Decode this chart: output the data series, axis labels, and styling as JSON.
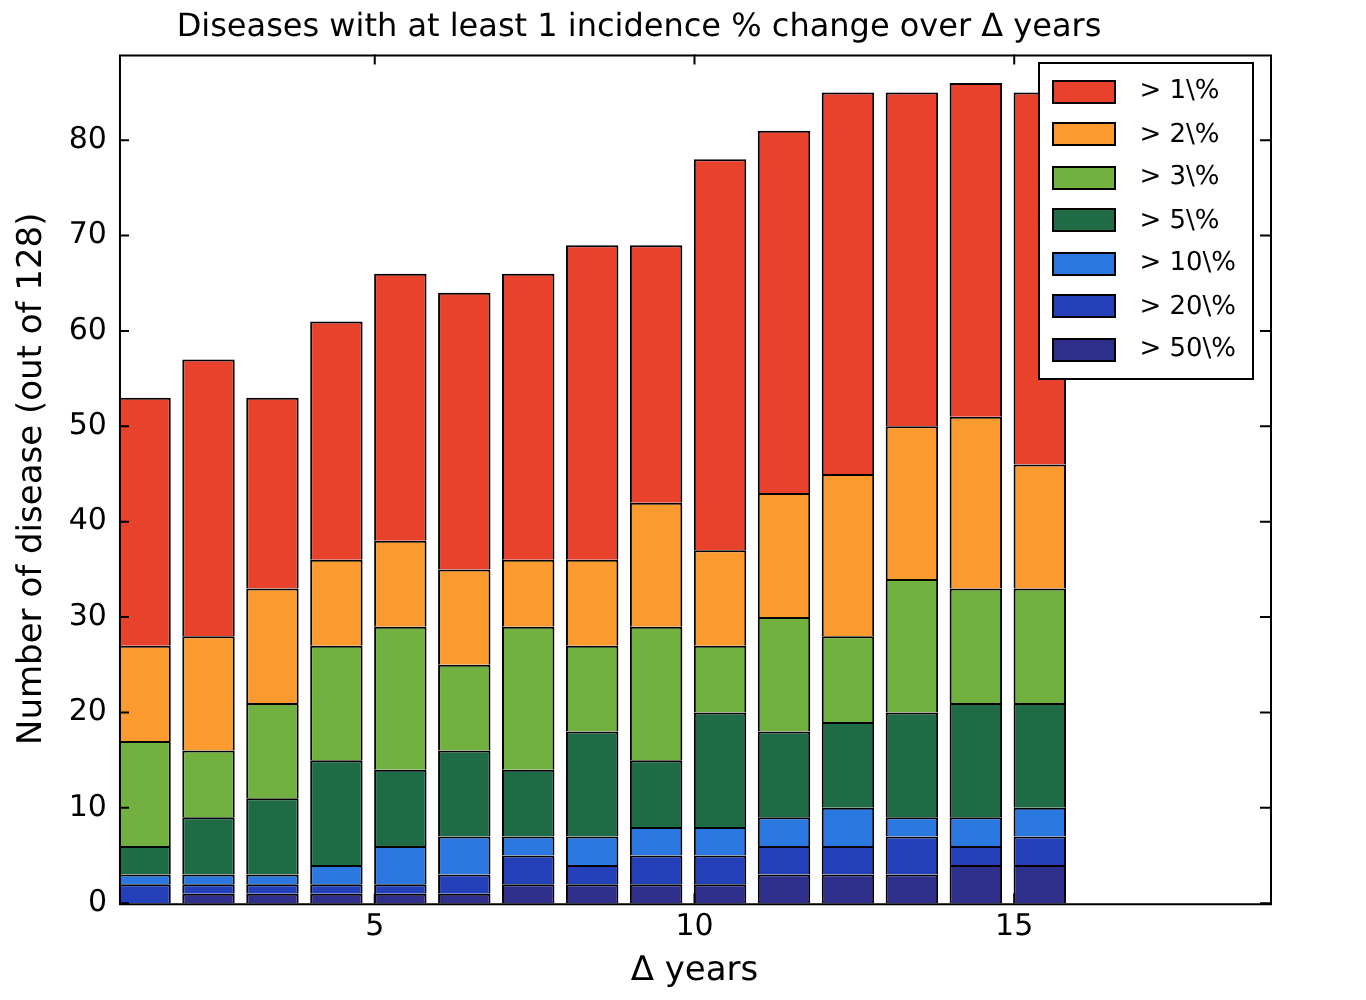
{
  "chart_data": {
    "type": "bar",
    "title": "Diseases with at least 1 incidence % change over Δ years",
    "xlabel": "Δ years",
    "ylabel": "Number of disease (out of 128)",
    "x": [
      1.4,
      2.4,
      3.4,
      4.4,
      5.4,
      6.4,
      7.4,
      8.4,
      9.4,
      10.4,
      11.4,
      12.4,
      13.4,
      14.4,
      15.4
    ],
    "stacked": true,
    "series": [
      {
        "name": "> 50\\%",
        "color": "#2e2f8a",
        "values": [
          0,
          1,
          1,
          1,
          1,
          1,
          2,
          2,
          2,
          2,
          3,
          3,
          3,
          4,
          4
        ]
      },
      {
        "name": "> 20\\%",
        "color": "#2440b8",
        "values": [
          2,
          1,
          1,
          1,
          1,
          2,
          3,
          2,
          3,
          3,
          3,
          3,
          4,
          2,
          3
        ]
      },
      {
        "name": "> 10\\%",
        "color": "#2a78e0",
        "values": [
          1,
          1,
          1,
          2,
          4,
          4,
          2,
          3,
          3,
          3,
          3,
          4,
          2,
          3,
          3
        ]
      },
      {
        "name": "> 5\\%",
        "color": "#1e6b45",
        "values": [
          3,
          6,
          8,
          11,
          8,
          9,
          7,
          11,
          7,
          12,
          9,
          9,
          11,
          12,
          11
        ]
      },
      {
        "name": "> 3\\%",
        "color": "#72b040",
        "values": [
          11,
          7,
          10,
          12,
          15,
          9,
          15,
          9,
          14,
          7,
          12,
          9,
          14,
          12,
          12
        ]
      },
      {
        "name": "> 2\\%",
        "color": "#fb9a2e",
        "values": [
          10,
          12,
          12,
          9,
          9,
          10,
          7,
          9,
          13,
          10,
          13,
          17,
          16,
          18,
          13
        ]
      },
      {
        "name": "> 1\\%",
        "color": "#e8412c",
        "values": [
          26,
          29,
          20,
          25,
          28,
          29,
          30,
          33,
          27,
          41,
          38,
          40,
          35,
          35,
          39
        ]
      }
    ],
    "xlim": [
      1,
      19
    ],
    "xticks": [
      5,
      10,
      15
    ],
    "ylim": [
      0,
      89
    ],
    "yticks": [
      0,
      10,
      20,
      30,
      40,
      50,
      60,
      70,
      80
    ],
    "grid": false,
    "legend": "top right"
  }
}
